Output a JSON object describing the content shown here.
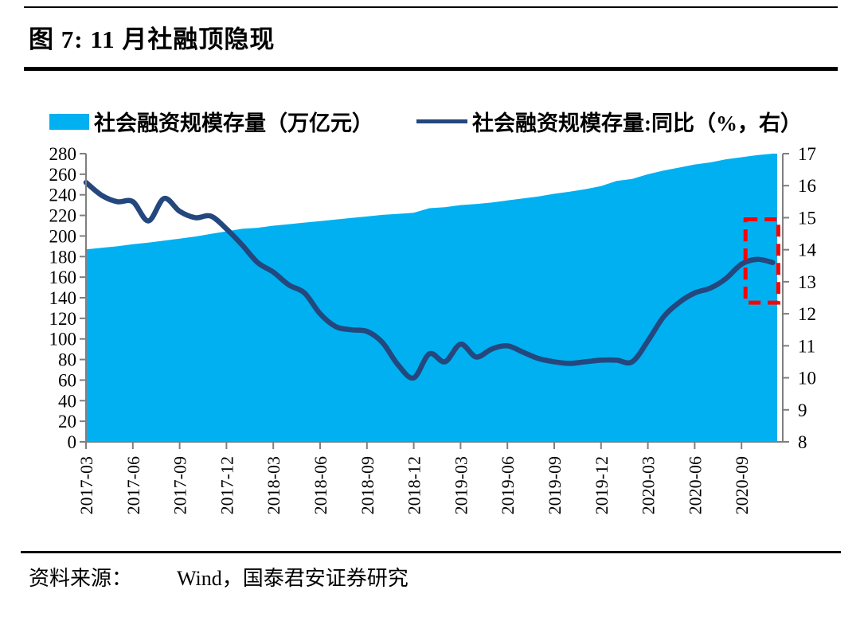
{
  "figure": {
    "title": "图 7:  11 月社融顶隐现",
    "source_label": "资料来源：",
    "source_text": "Wind，国泰君安证券研究"
  },
  "legend": [
    {
      "label": "社会融资规模存量（万亿元）",
      "marker": "area-swatch",
      "color": "#00B0F0"
    },
    {
      "label": "社会融资规模存量:同比（%，右）",
      "marker": "line-swatch",
      "color": "#24477D"
    }
  ],
  "colors": {
    "area": "#00B0F0",
    "line": "#24477D",
    "annotation": "#FF0000",
    "axis": "#7F7F7F",
    "text": "#000000",
    "background": "#FFFFFF"
  },
  "chart_data": {
    "type": "area+line combo (area on left axis, line on right axis)",
    "x_monthly": [
      "2017-03",
      "2017-04",
      "2017-05",
      "2017-06",
      "2017-07",
      "2017-08",
      "2017-09",
      "2017-10",
      "2017-11",
      "2017-12",
      "2018-01",
      "2018-02",
      "2018-03",
      "2018-04",
      "2018-05",
      "2018-06",
      "2018-07",
      "2018-08",
      "2018-09",
      "2018-10",
      "2018-11",
      "2018-12",
      "2019-01",
      "2019-02",
      "2019-03",
      "2019-04",
      "2019-05",
      "2019-06",
      "2019-07",
      "2019-08",
      "2019-09",
      "2019-10",
      "2019-11",
      "2019-12",
      "2020-01",
      "2020-02",
      "2020-03",
      "2020-04",
      "2020-05",
      "2020-06",
      "2020-07",
      "2020-08",
      "2020-09",
      "2020-10",
      "2020-11"
    ],
    "x_tick_labels": [
      "2017-03",
      "2017-06",
      "2017-09",
      "2017-12",
      "2018-03",
      "2018-06",
      "2018-09",
      "2018-12",
      "2019-03",
      "2019-06",
      "2019-09",
      "2019-12",
      "2020-03",
      "2020-06",
      "2020-09"
    ],
    "series": [
      {
        "name": "社会融资规模存量（万亿元）",
        "type": "area",
        "axis": "left",
        "values": [
          187,
          188.5,
          190,
          192,
          193.5,
          195.5,
          197.5,
          199.5,
          202,
          204.5,
          207,
          208,
          210,
          211.5,
          213,
          214.5,
          216,
          217.5,
          219,
          220.5,
          221.5,
          222.5,
          227,
          228,
          230,
          231,
          232.5,
          234.5,
          236.5,
          238.5,
          241,
          243,
          245.5,
          248.5,
          253.5,
          255.5,
          260,
          263.5,
          266.5,
          269.5,
          271.5,
          274.5,
          276.5,
          278.5,
          280
        ]
      },
      {
        "name": "社会融资规模存量:同比（%，右）",
        "type": "line",
        "axis": "right",
        "values": [
          16.1,
          15.7,
          15.5,
          15.5,
          14.9,
          15.6,
          15.2,
          15.0,
          15.05,
          14.65,
          14.15,
          13.6,
          13.3,
          12.9,
          12.65,
          12.0,
          11.6,
          11.5,
          11.45,
          11.1,
          10.4,
          10.0,
          10.75,
          10.5,
          11.05,
          10.65,
          10.9,
          11.0,
          10.8,
          10.6,
          10.5,
          10.45,
          10.5,
          10.55,
          10.55,
          10.5,
          11.15,
          11.9,
          12.35,
          12.65,
          12.8,
          13.1,
          13.55,
          13.7,
          13.6
        ]
      }
    ],
    "left_axis": {
      "min": 0,
      "max": 280,
      "step": 20,
      "ticks": [
        0,
        20,
        40,
        60,
        80,
        100,
        120,
        140,
        160,
        180,
        200,
        220,
        240,
        260,
        280
      ]
    },
    "right_axis": {
      "min": 8,
      "max": 17,
      "step": 1,
      "ticks": [
        8,
        9,
        10,
        11,
        12,
        13,
        14,
        15,
        16,
        17
      ]
    },
    "grid": "off",
    "legend_position": "top",
    "annotation": {
      "type": "dashed-rectangle",
      "color": "#FF0000",
      "x_from_month": "2020-09",
      "x_to_month": "2020-11",
      "y_top_right_axis": 14.95,
      "y_bottom_right_axis": 12.35,
      "meaning": "highlights the emerging top of TSF YoY growth in Nov"
    }
  }
}
